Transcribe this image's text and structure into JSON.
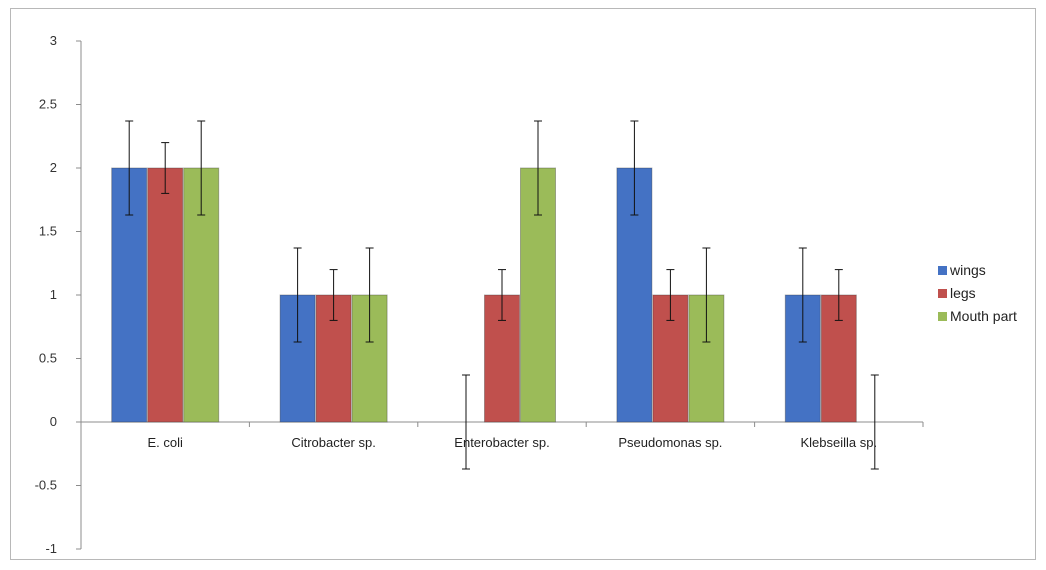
{
  "chart_data": {
    "type": "bar",
    "title": "",
    "xlabel": "",
    "ylabel": "",
    "categories": [
      "E. coli",
      "Citrobacter sp.",
      "Enterobacter sp.",
      "Pseudomonas sp.",
      "Klebseilla sp."
    ],
    "series": [
      {
        "name": "wings",
        "color": "#4472c4",
        "values": [
          2,
          1,
          0,
          2,
          1
        ],
        "errors": [
          0.37,
          0.37,
          0.37,
          0.37,
          0.37
        ]
      },
      {
        "name": "legs",
        "color": "#c0504d",
        "values": [
          2,
          1,
          1,
          1,
          1
        ],
        "errors": [
          0.2,
          0.2,
          0.2,
          0.2,
          0.2
        ]
      },
      {
        "name": "Mouth part",
        "color": "#9bbb59",
        "values": [
          2,
          1,
          2,
          1,
          0
        ],
        "errors": [
          0.37,
          0.37,
          0.37,
          0.37,
          0.37
        ]
      }
    ],
    "ylim": [
      -1,
      3
    ],
    "yticks": [
      "-1",
      "-0.5",
      "0",
      "0.5",
      "1",
      "1.5",
      "2",
      "2.5",
      "3"
    ],
    "grid": false,
    "legend_position": "right"
  }
}
